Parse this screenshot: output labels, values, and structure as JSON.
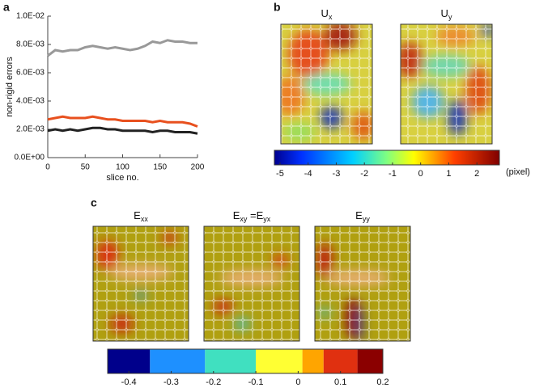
{
  "chart_data": [
    {
      "type": "line",
      "panel": "a",
      "xlabel": "slice no.",
      "ylabel": "non-rigid errors",
      "xlim": [
        0,
        200
      ],
      "xticks": [
        0,
        50,
        100,
        150,
        200
      ],
      "ylim": [
        0,
        0.01
      ],
      "yticks": [
        {
          "value": 0,
          "label": "0.0E+00"
        },
        {
          "value": 0.002,
          "label": "2.0E-03"
        },
        {
          "value": 0.004,
          "label": "4.0E-03"
        },
        {
          "value": 0.006,
          "label": "6.0E-03"
        },
        {
          "value": 0.008,
          "label": "8.0E-03"
        },
        {
          "value": 0.01,
          "label": "1.0E-02"
        }
      ],
      "x": [
        0,
        10,
        20,
        30,
        40,
        50,
        60,
        70,
        80,
        90,
        100,
        110,
        120,
        130,
        140,
        150,
        160,
        170,
        180,
        190,
        200
      ],
      "series": [
        {
          "color": "#999999",
          "values": [
            0.0072,
            0.0076,
            0.0075,
            0.0076,
            0.0076,
            0.0078,
            0.0079,
            0.0078,
            0.0077,
            0.0078,
            0.0077,
            0.0076,
            0.0077,
            0.0079,
            0.0082,
            0.0081,
            0.0083,
            0.0082,
            0.0082,
            0.0081,
            0.0081
          ]
        },
        {
          "color": "#e8501e",
          "values": [
            0.0027,
            0.0028,
            0.0029,
            0.0028,
            0.0028,
            0.0028,
            0.0029,
            0.0028,
            0.0027,
            0.0027,
            0.0026,
            0.0026,
            0.0026,
            0.0026,
            0.0025,
            0.0026,
            0.0025,
            0.0025,
            0.0025,
            0.0024,
            0.0022
          ]
        },
        {
          "color": "#222222",
          "values": [
            0.0019,
            0.002,
            0.0019,
            0.002,
            0.0019,
            0.002,
            0.0021,
            0.0021,
            0.002,
            0.002,
            0.0019,
            0.0019,
            0.0019,
            0.0019,
            0.0018,
            0.0019,
            0.0019,
            0.0018,
            0.0018,
            0.0018,
            0.0017
          ]
        }
      ]
    },
    {
      "type": "heatmap",
      "panel": "b",
      "images": [
        {
          "title_parts": [
            "U",
            "x"
          ]
        },
        {
          "title_parts": [
            "U",
            "y"
          ]
        }
      ],
      "colorbar": {
        "style": "continuous",
        "clim": [
          -5.2,
          2.8
        ],
        "ticks": [
          -5,
          -4,
          -3,
          -2,
          -1,
          0,
          1,
          2
        ],
        "unit": "(pixel)"
      }
    },
    {
      "type": "heatmap",
      "panel": "c",
      "images": [
        {
          "title_parts": [
            "E",
            "xx"
          ]
        },
        {
          "title_parts": [
            "E",
            "xy",
            " =E",
            "yx"
          ]
        },
        {
          "title_parts": [
            "E",
            "yy"
          ]
        }
      ],
      "colorbar": {
        "style": "discrete",
        "clim": [
          -0.45,
          0.2
        ],
        "ticks": [
          -0.4,
          -0.3,
          -0.2,
          -0.1,
          0,
          0.1,
          0.2
        ],
        "levels": [
          -0.45,
          -0.35,
          -0.22,
          -0.1,
          0.01,
          0.06,
          0.14,
          0.2
        ],
        "colors": [
          "#00008b",
          "#1e90ff",
          "#40e0c0",
          "#ffff33",
          "#ffa500",
          "#e03010",
          "#8b0000"
        ]
      }
    }
  ]
}
